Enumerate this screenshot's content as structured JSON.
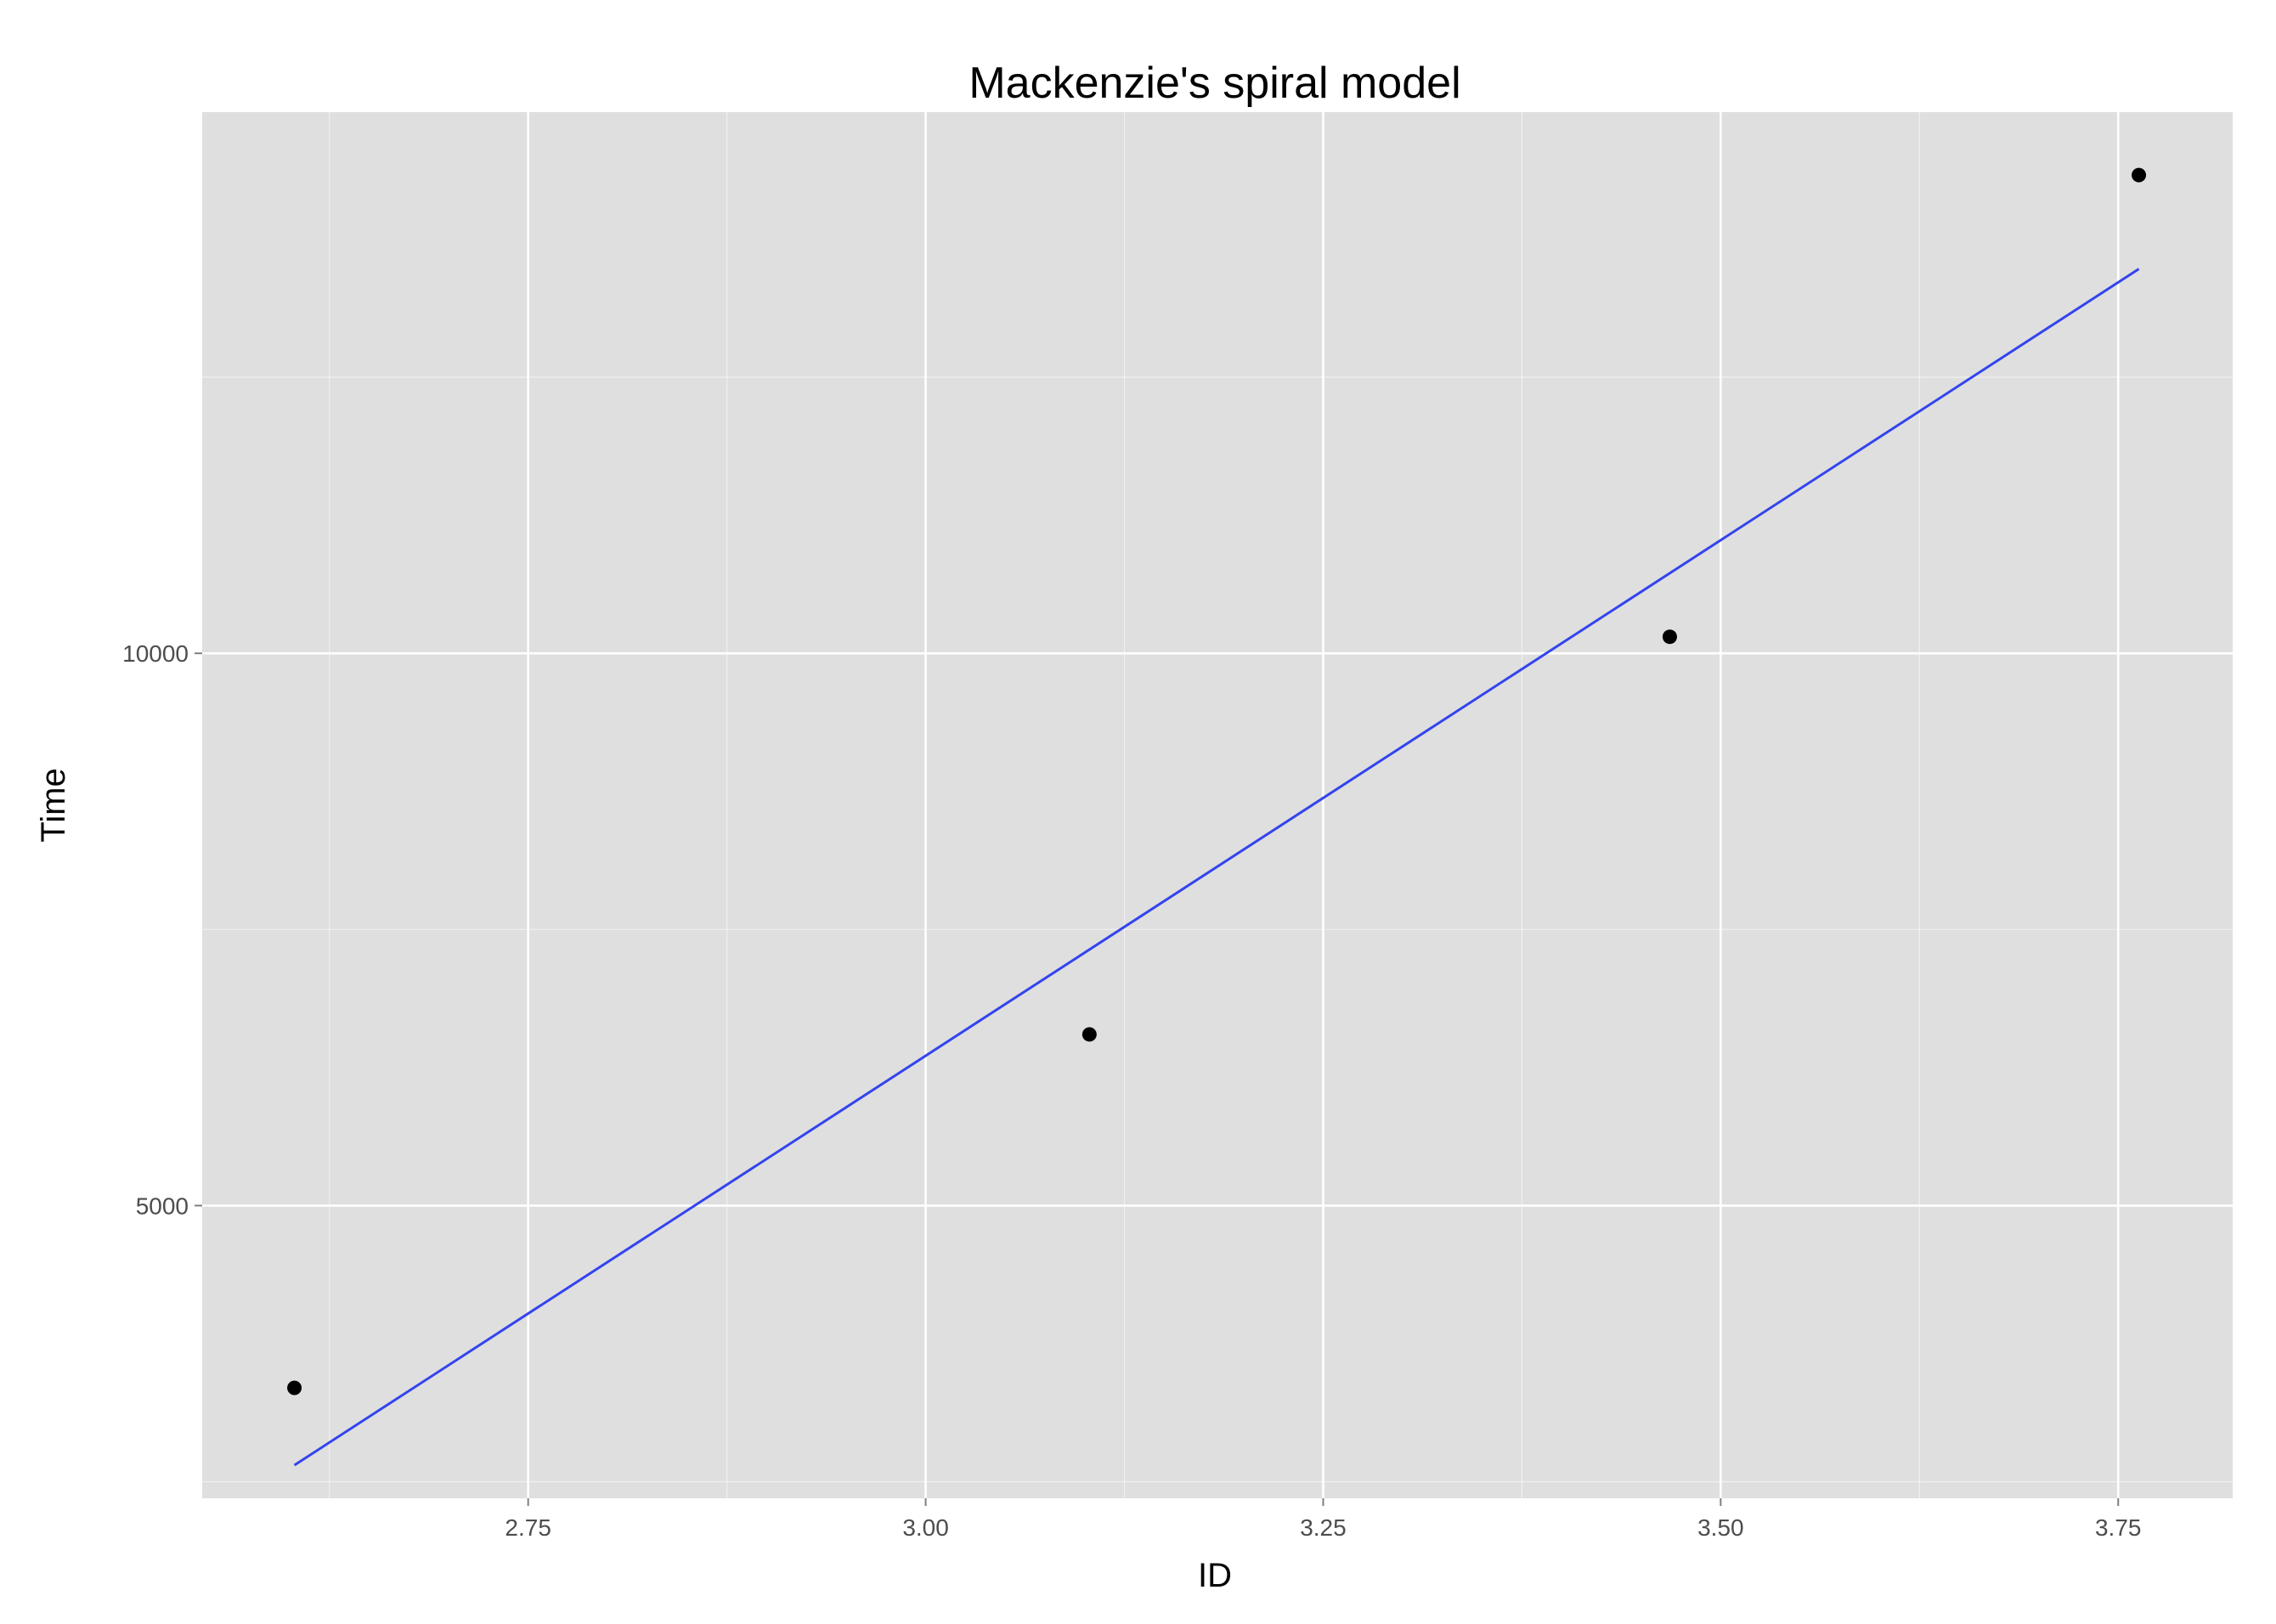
{
  "chart_data": {
    "type": "scatter",
    "title": "Mackenzie's spiral model",
    "xlabel": "ID",
    "ylabel": "Time",
    "xlim": [
      2.545,
      3.822
    ],
    "ylim": [
      2350,
      14900
    ],
    "x_ticks": [
      2.75,
      3.0,
      3.25,
      3.5,
      3.75
    ],
    "x_tick_labels": [
      "2.75",
      "3.00",
      "3.25",
      "3.50",
      "3.75"
    ],
    "x_minor_ticks": [
      2.625,
      2.875,
      3.125,
      3.375,
      3.625
    ],
    "y_ticks": [
      5000,
      10000
    ],
    "y_tick_labels": [
      "5000",
      "10000"
    ],
    "y_minor_ticks": [
      2500,
      7500,
      12500
    ],
    "grid": true,
    "points": {
      "x": [
        2.603,
        3.103,
        3.468,
        3.763
      ],
      "y": [
        3350,
        6550,
        10150,
        14330
      ]
    },
    "fit_line": {
      "x": [
        2.603,
        3.763
      ],
      "y": [
        2650,
        13480
      ]
    },
    "colors": {
      "panel": "#dfdfdf",
      "grid": "#ffffff",
      "points": "#000000",
      "fit_line": "#3344ee"
    }
  }
}
